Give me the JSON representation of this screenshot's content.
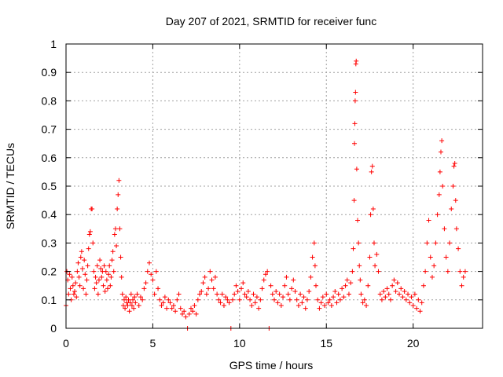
{
  "chart_data": {
    "type": "scatter",
    "title": "Day 207 of 2021, SRMTID for receiver func",
    "xlabel": "GPS time / hours",
    "ylabel": "SRMTID / TECUs",
    "xlim": [
      0,
      24
    ],
    "ylim": [
      0,
      1
    ],
    "xticks": [
      0,
      5,
      10,
      15,
      20
    ],
    "yticks": [
      0,
      0.1,
      0.2,
      0.3,
      0.4,
      0.5,
      0.6,
      0.7,
      0.8,
      0.9,
      1
    ],
    "ytick_labels": [
      "0",
      "0.1",
      "0.2",
      "0.3",
      "0.4",
      "0.5",
      "0.6",
      "0.7",
      "0.8",
      "0.9",
      "1"
    ],
    "grid": true,
    "series": [
      {
        "name": "SRMTID",
        "color": "#ff0000",
        "marker": "plus",
        "points": [
          [
            0.0,
            0.08
          ],
          [
            0.05,
            0.2
          ],
          [
            0.1,
            0.17
          ],
          [
            0.15,
            0.12
          ],
          [
            0.2,
            0.19
          ],
          [
            0.25,
            0.14
          ],
          [
            0.3,
            0.1
          ],
          [
            0.35,
            0.18
          ],
          [
            0.4,
            0.15
          ],
          [
            0.45,
            0.12
          ],
          [
            0.5,
            0.13
          ],
          [
            0.55,
            0.16
          ],
          [
            0.6,
            0.11
          ],
          [
            0.65,
            0.2
          ],
          [
            0.7,
            0.23
          ],
          [
            0.75,
            0.18
          ],
          [
            0.8,
            0.15
          ],
          [
            0.85,
            0.25
          ],
          [
            0.9,
            0.27
          ],
          [
            0.95,
            0.21
          ],
          [
            1.0,
            0.14
          ],
          [
            1.05,
            0.24
          ],
          [
            1.1,
            0.19
          ],
          [
            1.15,
            0.12
          ],
          [
            1.2,
            0.17
          ],
          [
            1.25,
            0.22
          ],
          [
            1.3,
            0.28
          ],
          [
            1.35,
            0.33
          ],
          [
            1.4,
            0.34
          ],
          [
            1.45,
            0.42
          ],
          [
            1.5,
            0.42
          ],
          [
            1.55,
            0.3
          ],
          [
            1.6,
            0.2
          ],
          [
            1.65,
            0.14
          ],
          [
            1.7,
            0.18
          ],
          [
            1.75,
            0.16
          ],
          [
            1.8,
            0.22
          ],
          [
            1.85,
            0.12
          ],
          [
            1.9,
            0.17
          ],
          [
            1.95,
            0.24
          ],
          [
            2.0,
            0.21
          ],
          [
            2.05,
            0.18
          ],
          [
            2.1,
            0.2
          ],
          [
            2.15,
            0.15
          ],
          [
            2.2,
            0.22
          ],
          [
            2.25,
            0.13
          ],
          [
            2.3,
            0.2
          ],
          [
            2.35,
            0.17
          ],
          [
            2.4,
            0.14
          ],
          [
            2.45,
            0.19
          ],
          [
            2.5,
            0.22
          ],
          [
            2.55,
            0.15
          ],
          [
            2.6,
            0.18
          ],
          [
            2.65,
            0.24
          ],
          [
            2.7,
            0.27
          ],
          [
            2.75,
            0.2
          ],
          [
            2.8,
            0.33
          ],
          [
            2.85,
            0.35
          ],
          [
            2.9,
            0.29
          ],
          [
            2.95,
            0.42
          ],
          [
            3.0,
            0.47
          ],
          [
            3.05,
            0.52
          ],
          [
            3.1,
            0.35
          ],
          [
            3.15,
            0.25
          ],
          [
            3.2,
            0.18
          ],
          [
            3.25,
            0.12
          ],
          [
            3.3,
            0.08
          ],
          [
            3.35,
            0.1
          ],
          [
            3.4,
            0.07
          ],
          [
            3.45,
            0.11
          ],
          [
            3.5,
            0.09
          ],
          [
            3.55,
            0.08
          ],
          [
            3.6,
            0.1
          ],
          [
            3.65,
            0.06
          ],
          [
            3.7,
            0.09
          ],
          [
            3.75,
            0.12
          ],
          [
            3.8,
            0.08
          ],
          [
            3.85,
            0.1
          ],
          [
            3.9,
            0.07
          ],
          [
            3.95,
            0.11
          ],
          [
            4.0,
            0.09
          ],
          [
            4.1,
            0.12
          ],
          [
            4.2,
            0.08
          ],
          [
            4.3,
            0.11
          ],
          [
            4.4,
            0.1
          ],
          [
            4.5,
            0.14
          ],
          [
            4.6,
            0.16
          ],
          [
            4.7,
            0.2
          ],
          [
            4.8,
            0.23
          ],
          [
            4.9,
            0.19
          ],
          [
            5.0,
            0.17
          ],
          [
            5.1,
            0.12
          ],
          [
            5.2,
            0.2
          ],
          [
            5.3,
            0.14
          ],
          [
            5.4,
            0.1
          ],
          [
            5.5,
            0.08
          ],
          [
            5.6,
            0.09
          ],
          [
            5.7,
            0.11
          ],
          [
            5.8,
            0.07
          ],
          [
            5.9,
            0.1
          ],
          [
            6.0,
            0.09
          ],
          [
            6.1,
            0.07
          ],
          [
            6.2,
            0.08
          ],
          [
            6.3,
            0.06
          ],
          [
            6.4,
            0.1
          ],
          [
            6.5,
            0.12
          ],
          [
            6.6,
            0.07
          ],
          [
            6.7,
            0.05
          ],
          [
            6.8,
            0.06
          ],
          [
            6.9,
            0.04
          ],
          [
            7.0,
            0.0
          ],
          [
            7.1,
            0.05
          ],
          [
            7.2,
            0.07
          ],
          [
            7.3,
            0.06
          ],
          [
            7.4,
            0.08
          ],
          [
            7.5,
            0.05
          ],
          [
            7.6,
            0.1
          ],
          [
            7.7,
            0.12
          ],
          [
            7.8,
            0.13
          ],
          [
            7.9,
            0.16
          ],
          [
            8.0,
            0.18
          ],
          [
            8.1,
            0.12
          ],
          [
            8.2,
            0.14
          ],
          [
            8.3,
            0.2
          ],
          [
            8.4,
            0.17
          ],
          [
            8.5,
            0.14
          ],
          [
            8.6,
            0.18
          ],
          [
            8.7,
            0.12
          ],
          [
            8.8,
            0.1
          ],
          [
            8.9,
            0.09
          ],
          [
            9.0,
            0.12
          ],
          [
            9.1,
            0.08
          ],
          [
            9.2,
            0.11
          ],
          [
            9.3,
            0.1
          ],
          [
            9.4,
            0.09
          ],
          [
            9.5,
            0.0
          ],
          [
            9.6,
            0.1
          ],
          [
            9.7,
            0.12
          ],
          [
            9.8,
            0.15
          ],
          [
            9.9,
            0.13
          ],
          [
            10.0,
            0.1
          ],
          [
            10.1,
            0.14
          ],
          [
            10.2,
            0.16
          ],
          [
            10.3,
            0.12
          ],
          [
            10.4,
            0.11
          ],
          [
            10.5,
            0.13
          ],
          [
            10.6,
            0.1
          ],
          [
            10.7,
            0.08
          ],
          [
            10.8,
            0.12
          ],
          [
            10.9,
            0.09
          ],
          [
            11.0,
            0.11
          ],
          [
            11.1,
            0.07
          ],
          [
            11.2,
            0.1
          ],
          [
            11.3,
            0.14
          ],
          [
            11.4,
            0.17
          ],
          [
            11.5,
            0.19
          ],
          [
            11.6,
            0.2
          ],
          [
            11.7,
            0.0
          ],
          [
            11.8,
            0.15
          ],
          [
            11.9,
            0.12
          ],
          [
            12.0,
            0.1
          ],
          [
            12.1,
            0.13
          ],
          [
            12.2,
            0.09
          ],
          [
            12.3,
            0.12
          ],
          [
            12.4,
            0.08
          ],
          [
            12.5,
            0.11
          ],
          [
            12.6,
            0.15
          ],
          [
            12.7,
            0.18
          ],
          [
            12.8,
            0.12
          ],
          [
            12.9,
            0.1
          ],
          [
            13.0,
            0.14
          ],
          [
            13.1,
            0.17
          ],
          [
            13.2,
            0.13
          ],
          [
            13.3,
            0.1
          ],
          [
            13.4,
            0.08
          ],
          [
            13.5,
            0.12
          ],
          [
            13.6,
            0.09
          ],
          [
            13.7,
            0.11
          ],
          [
            13.8,
            0.07
          ],
          [
            13.9,
            0.1
          ],
          [
            14.0,
            0.13
          ],
          [
            14.1,
            0.18
          ],
          [
            14.2,
            0.25
          ],
          [
            14.3,
            0.3
          ],
          [
            14.35,
            0.22
          ],
          [
            14.4,
            0.15
          ],
          [
            14.5,
            0.1
          ],
          [
            14.6,
            0.07
          ],
          [
            14.7,
            0.09
          ],
          [
            14.8,
            0.11
          ],
          [
            14.9,
            0.08
          ],
          [
            15.0,
            0.12
          ],
          [
            15.1,
            0.09
          ],
          [
            15.2,
            0.1
          ],
          [
            15.3,
            0.08
          ],
          [
            15.4,
            0.11
          ],
          [
            15.5,
            0.13
          ],
          [
            15.6,
            0.09
          ],
          [
            15.7,
            0.12
          ],
          [
            15.8,
            0.1
          ],
          [
            15.9,
            0.14
          ],
          [
            16.0,
            0.11
          ],
          [
            16.1,
            0.15
          ],
          [
            16.2,
            0.17
          ],
          [
            16.3,
            0.12
          ],
          [
            16.4,
            0.16
          ],
          [
            16.5,
            0.2
          ],
          [
            16.55,
            0.28
          ],
          [
            16.6,
            0.45
          ],
          [
            16.62,
            0.65
          ],
          [
            16.64,
            0.72
          ],
          [
            16.66,
            0.8
          ],
          [
            16.68,
            0.83
          ],
          [
            16.7,
            0.93
          ],
          [
            16.72,
            0.94
          ],
          [
            16.75,
            0.56
          ],
          [
            16.8,
            0.38
          ],
          [
            16.85,
            0.3
          ],
          [
            16.9,
            0.22
          ],
          [
            16.95,
            0.17
          ],
          [
            17.0,
            0.12
          ],
          [
            17.1,
            0.09
          ],
          [
            17.2,
            0.1
          ],
          [
            17.3,
            0.08
          ],
          [
            17.4,
            0.15
          ],
          [
            17.5,
            0.25
          ],
          [
            17.55,
            0.4
          ],
          [
            17.6,
            0.55
          ],
          [
            17.65,
            0.57
          ],
          [
            17.7,
            0.42
          ],
          [
            17.75,
            0.3
          ],
          [
            17.8,
            0.22
          ],
          [
            17.9,
            0.26
          ],
          [
            18.0,
            0.2
          ],
          [
            18.1,
            0.12
          ],
          [
            18.2,
            0.1
          ],
          [
            18.3,
            0.13
          ],
          [
            18.4,
            0.11
          ],
          [
            18.5,
            0.14
          ],
          [
            18.6,
            0.12
          ],
          [
            18.7,
            0.1
          ],
          [
            18.8,
            0.15
          ],
          [
            18.9,
            0.17
          ],
          [
            19.0,
            0.13
          ],
          [
            19.1,
            0.16
          ],
          [
            19.2,
            0.12
          ],
          [
            19.3,
            0.14
          ],
          [
            19.4,
            0.11
          ],
          [
            19.5,
            0.13
          ],
          [
            19.6,
            0.1
          ],
          [
            19.7,
            0.12
          ],
          [
            19.8,
            0.09
          ],
          [
            19.9,
            0.11
          ],
          [
            20.0,
            0.08
          ],
          [
            20.1,
            0.12
          ],
          [
            20.2,
            0.07
          ],
          [
            20.3,
            0.1
          ],
          [
            20.4,
            0.06
          ],
          [
            20.5,
            0.09
          ],
          [
            20.6,
            0.15
          ],
          [
            20.7,
            0.2
          ],
          [
            20.8,
            0.3
          ],
          [
            20.9,
            0.38
          ],
          [
            21.0,
            0.25
          ],
          [
            21.1,
            0.18
          ],
          [
            21.2,
            0.22
          ],
          [
            21.3,
            0.3
          ],
          [
            21.4,
            0.4
          ],
          [
            21.5,
            0.47
          ],
          [
            21.55,
            0.55
          ],
          [
            21.6,
            0.62
          ],
          [
            21.65,
            0.66
          ],
          [
            21.7,
            0.5
          ],
          [
            21.8,
            0.35
          ],
          [
            21.9,
            0.25
          ],
          [
            22.0,
            0.2
          ],
          [
            22.1,
            0.3
          ],
          [
            22.2,
            0.42
          ],
          [
            22.3,
            0.5
          ],
          [
            22.35,
            0.57
          ],
          [
            22.4,
            0.58
          ],
          [
            22.45,
            0.45
          ],
          [
            22.5,
            0.35
          ],
          [
            22.6,
            0.28
          ],
          [
            22.7,
            0.2
          ],
          [
            22.8,
            0.15
          ],
          [
            22.9,
            0.18
          ],
          [
            23.0,
            0.2
          ]
        ]
      }
    ]
  }
}
